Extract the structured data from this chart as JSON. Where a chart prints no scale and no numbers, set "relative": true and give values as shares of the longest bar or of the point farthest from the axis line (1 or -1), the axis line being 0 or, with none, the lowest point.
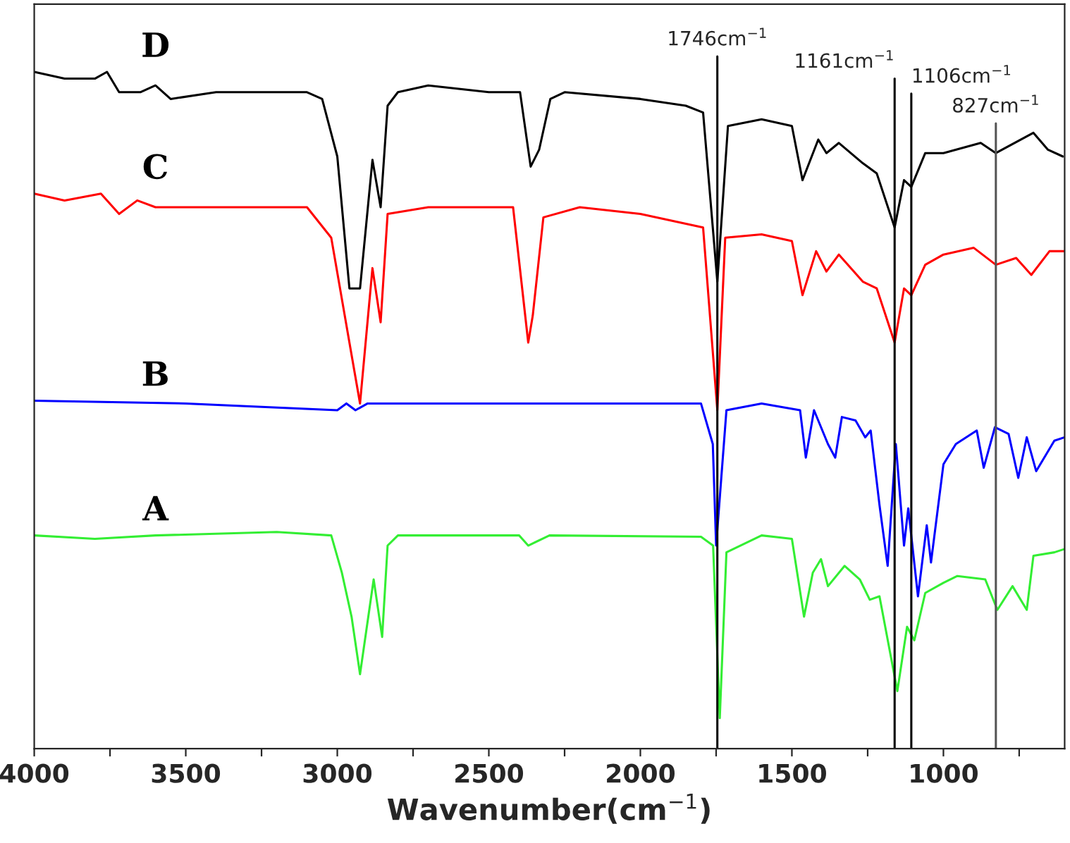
{
  "chart_data": {
    "type": "line",
    "relative": true,
    "xlabel": "Wavenumber(cm$^{−1}$)",
    "xlim": [
      4000,
      600
    ],
    "xticks": [
      4000,
      {
        "value": 3750,
        "label": null
      },
      3500,
      {
        "value": 3250,
        "label": null
      },
      3000,
      {
        "value": 2750,
        "label": null
      },
      2500,
      {
        "value": 2250,
        "label": null
      },
      2000,
      {
        "value": 1750,
        "label": null
      },
      1500,
      {
        "value": 1250,
        "label": null
      },
      1000,
      {
        "value": 750,
        "label": null
      }
    ],
    "tick_labels": "x",
    "grid": false,
    "legend": false,
    "marker": "none",
    "line_style": "solid",
    "series": [
      {
        "name": "D",
        "color": "#000000",
        "x": [
          4000,
          3900,
          3800,
          3760,
          3720,
          3650,
          3600,
          3550,
          3400,
          3100,
          3050,
          3000,
          2960,
          2925,
          2884,
          2857,
          2834,
          2800,
          2700,
          2500,
          2397,
          2362,
          2334,
          2297,
          2250,
          2000,
          1850,
          1793,
          1746,
          1711,
          1600,
          1500,
          1465,
          1413,
          1386,
          1345,
          1266,
          1220,
          1161,
          1130,
          1106,
          1060,
          1000,
          877,
          827,
          703,
          655,
          606
        ],
        "values": [
          1.0,
          0.99,
          0.99,
          1.0,
          0.97,
          0.97,
          0.98,
          0.96,
          0.97,
          0.97,
          0.96,
          0.875,
          0.68,
          0.68,
          0.87,
          0.8,
          0.95,
          0.97,
          0.98,
          0.97,
          0.97,
          0.86,
          0.885,
          0.96,
          0.97,
          0.96,
          0.95,
          0.94,
          0.69,
          0.92,
          0.93,
          0.92,
          0.84,
          0.9,
          0.88,
          0.895,
          0.865,
          0.85,
          0.77,
          0.84,
          0.83,
          0.88,
          0.88,
          0.895,
          0.88,
          0.91,
          0.885,
          0.875
        ]
      },
      {
        "name": "C",
        "color": "#ff0000",
        "x": [
          4000,
          3900,
          3780,
          3720,
          3660,
          3600,
          3400,
          3100,
          3020,
          2960,
          2925,
          2884,
          2857,
          2834,
          2700,
          2420,
          2370,
          2355,
          2320,
          2200,
          2000,
          1793,
          1746,
          1720,
          1600,
          1500,
          1465,
          1420,
          1386,
          1345,
          1266,
          1220,
          1161,
          1130,
          1106,
          1060,
          1000,
          900,
          827,
          760,
          710,
          650,
          600
        ],
        "values": [
          0.82,
          0.81,
          0.82,
          0.79,
          0.81,
          0.8,
          0.8,
          0.8,
          0.755,
          0.6,
          0.51,
          0.71,
          0.63,
          0.79,
          0.8,
          0.8,
          0.6,
          0.64,
          0.785,
          0.8,
          0.79,
          0.77,
          0.5,
          0.755,
          0.76,
          0.75,
          0.67,
          0.735,
          0.705,
          0.73,
          0.69,
          0.68,
          0.6,
          0.68,
          0.67,
          0.715,
          0.73,
          0.74,
          0.715,
          0.725,
          0.7,
          0.735,
          0.735
        ]
      },
      {
        "name": "B",
        "color": "#0000ff",
        "x": [
          4000,
          3500,
          3000,
          2970,
          2940,
          2900,
          2370,
          1800,
          1761,
          1750,
          1716,
          1600,
          1473,
          1454,
          1427,
          1381,
          1357,
          1335,
          1290,
          1258,
          1240,
          1211,
          1184,
          1157,
          1130,
          1116,
          1084,
          1055,
          1041,
          1000,
          959,
          890,
          867,
          830,
          785,
          753,
          725,
          694,
          634,
          600
        ],
        "values": [
          0.514,
          0.51,
          0.5,
          0.51,
          0.5,
          0.51,
          0.51,
          0.51,
          0.45,
          0.3,
          0.5,
          0.51,
          0.5,
          0.43,
          0.5,
          0.45,
          0.43,
          0.49,
          0.485,
          0.46,
          0.47,
          0.36,
          0.27,
          0.45,
          0.3,
          0.355,
          0.225,
          0.33,
          0.275,
          0.42,
          0.45,
          0.47,
          0.415,
          0.475,
          0.465,
          0.4,
          0.46,
          0.41,
          0.455,
          0.46
        ]
      },
      {
        "name": "A",
        "color": "#33ee33",
        "x": [
          4000,
          3800,
          3600,
          3200,
          3020,
          2985,
          2953,
          2925,
          2880,
          2852,
          2834,
          2800,
          2400,
          2370,
          2300,
          1800,
          1760,
          1738,
          1716,
          1600,
          1500,
          1460,
          1431,
          1404,
          1381,
          1326,
          1276,
          1243,
          1211,
          1152,
          1120,
          1096,
          1060,
          1000,
          954,
          862,
          822,
          772,
          725,
          703,
          634,
          600
        ],
        "values": [
          0.315,
          0.31,
          0.315,
          0.32,
          0.315,
          0.26,
          0.195,
          0.11,
          0.25,
          0.165,
          0.3,
          0.315,
          0.315,
          0.3,
          0.315,
          0.313,
          0.3,
          0.045,
          0.29,
          0.315,
          0.31,
          0.195,
          0.26,
          0.28,
          0.24,
          0.27,
          0.25,
          0.22,
          0.225,
          0.085,
          0.18,
          0.16,
          0.23,
          0.245,
          0.255,
          0.25,
          0.205,
          0.24,
          0.205,
          0.285,
          0.29,
          0.295
        ]
      }
    ],
    "ref_lines": [
      {
        "axis": "x",
        "value": 1746,
        "label": "1746cm$^{−1}$",
        "color": "#000000"
      },
      {
        "axis": "x",
        "value": 1161,
        "label": "1161cm$^{−1}$",
        "color": "#000000"
      },
      {
        "axis": "x",
        "value": 1106,
        "label": "1106cm$^{−1}$",
        "color": "#000000"
      },
      {
        "axis": "x",
        "value": 827,
        "label": "827cm$^{−1}$",
        "color": "#555555"
      }
    ]
  }
}
